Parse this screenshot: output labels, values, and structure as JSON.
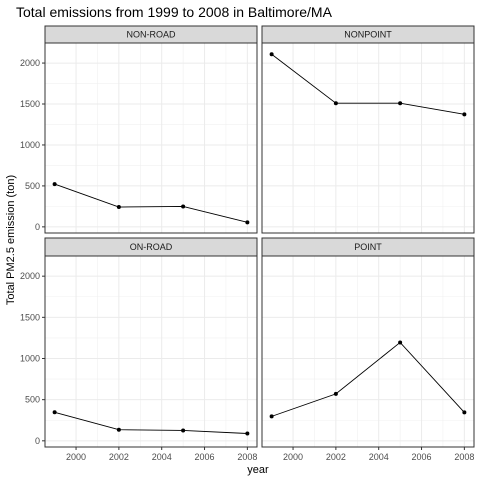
{
  "chart_data": {
    "type": "line",
    "title": "Total emissions from 1999 to 2008 in Baltimore/MA",
    "xlabel": "year",
    "ylabel": "Total PM2.5 emission (ton)",
    "x": [
      1999,
      2002,
      2005,
      2008
    ],
    "xlim": [
      1998.55,
      2008.45
    ],
    "ylim": [
      -75,
      2245
    ],
    "xticks": [
      2000,
      2002,
      2004,
      2006,
      2008
    ],
    "yticks": [
      0,
      500,
      1000,
      1500,
      2000
    ],
    "xtick_labels": [
      "2000",
      "2002",
      "2004",
      "2006",
      "2008"
    ],
    "ytick_labels": [
      "0",
      "500",
      "1000",
      "1500",
      "2000"
    ],
    "grid": true,
    "layout": "facet 2x2",
    "series_color": "#000000",
    "panel_border_color": "#333333",
    "strip_fill_color": "#d9d9d9",
    "facets": [
      {
        "name": "NON-ROAD",
        "values": [
          522,
          242,
          249,
          55
        ]
      },
      {
        "name": "NONPOINT",
        "values": [
          2108,
          1510,
          1510,
          1374
        ]
      },
      {
        "name": "ON-ROAD",
        "values": [
          347,
          135,
          126,
          89
        ]
      },
      {
        "name": "POINT",
        "values": [
          297,
          570,
          1195,
          345
        ]
      }
    ]
  }
}
